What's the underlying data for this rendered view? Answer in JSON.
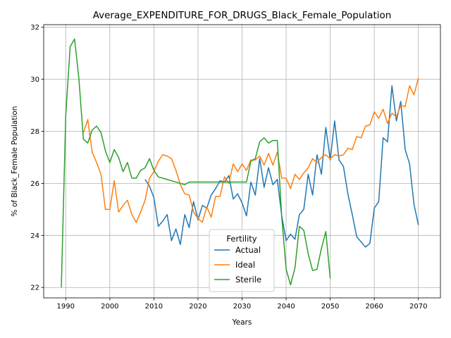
{
  "chart_data": {
    "type": "line",
    "title": "Average_EXPENDITURE_FOR_DRUGS_Black_Female_Population",
    "xlabel": "Years",
    "ylabel": "% of Black_Female Population",
    "xlim": [
      1985,
      2075
    ],
    "ylim": [
      21.6,
      32.1
    ],
    "xticks": [
      1990,
      2000,
      2010,
      2020,
      2030,
      2040,
      2050,
      2060,
      2070
    ],
    "yticks": [
      22,
      24,
      26,
      28,
      30,
      32
    ],
    "grid": true,
    "legend": {
      "title": "Fertility",
      "placement": "lower-center"
    },
    "series": [
      {
        "name": "Actual",
        "color": "#1f77b4",
        "x": [
          2008,
          2009,
          2010,
          2011,
          2012,
          2013,
          2014,
          2015,
          2016,
          2017,
          2018,
          2019,
          2020,
          2021,
          2022,
          2023,
          2024,
          2025,
          2026,
          2027,
          2028,
          2029,
          2030,
          2031,
          2032,
          2033,
          2034,
          2035,
          2036,
          2037,
          2038,
          2039,
          2040,
          2041,
          2042,
          2043,
          2044,
          2045,
          2046,
          2047,
          2048,
          2049,
          2050,
          2051,
          2052,
          2053,
          2054,
          2055,
          2056,
          2057,
          2058,
          2059,
          2060,
          2061,
          2062,
          2063,
          2064,
          2065,
          2066,
          2067,
          2068,
          2069,
          2070
        ],
        "y": [
          26.15,
          25.9,
          25.45,
          24.35,
          24.55,
          24.8,
          23.8,
          24.25,
          23.65,
          24.8,
          24.3,
          25.3,
          24.6,
          25.15,
          25.05,
          25.55,
          25.8,
          26.1,
          26.05,
          26.3,
          25.4,
          25.6,
          25.25,
          24.75,
          26.05,
          25.55,
          26.95,
          25.85,
          26.6,
          25.95,
          26.15,
          24.75,
          23.8,
          24.05,
          23.85,
          24.8,
          25.0,
          26.35,
          25.55,
          27.1,
          26.35,
          28.15,
          26.9,
          28.4,
          26.9,
          26.65,
          25.6,
          24.8,
          23.95,
          23.75,
          23.55,
          23.7,
          25.05,
          25.3,
          27.75,
          27.6,
          29.75,
          28.4,
          29.15,
          27.3,
          26.75,
          25.2,
          24.4
        ]
      },
      {
        "name": "Ideal",
        "color": "#ff7f0e",
        "x": [
          1994,
          1995,
          1996,
          1997,
          1998,
          1999,
          2000,
          2001,
          2002,
          2003,
          2004,
          2005,
          2006,
          2007,
          2008,
          2009,
          2010,
          2011,
          2012,
          2013,
          2014,
          2015,
          2016,
          2017,
          2018,
          2019,
          2020,
          2021,
          2022,
          2023,
          2024,
          2025,
          2026,
          2027,
          2028,
          2029,
          2030,
          2031,
          2032,
          2033,
          2034,
          2035,
          2036,
          2037,
          2038,
          2039,
          2040,
          2041,
          2042,
          2043,
          2044,
          2045,
          2046,
          2047,
          2048,
          2049,
          2050,
          2051,
          2052,
          2053,
          2054,
          2055,
          2056,
          2057,
          2058,
          2059,
          2060,
          2061,
          2062,
          2063,
          2064,
          2065,
          2066,
          2067,
          2068,
          2069,
          2070
        ],
        "y": [
          27.95,
          28.45,
          27.2,
          26.8,
          26.35,
          25.0,
          25.0,
          26.1,
          24.9,
          25.15,
          25.35,
          24.8,
          24.5,
          24.9,
          25.35,
          26.2,
          26.45,
          26.85,
          27.1,
          27.05,
          26.95,
          26.5,
          25.95,
          25.6,
          25.55,
          24.9,
          24.65,
          24.5,
          25.1,
          24.7,
          25.5,
          25.5,
          26.25,
          26.0,
          26.75,
          26.45,
          26.75,
          26.5,
          26.9,
          26.9,
          27.05,
          26.7,
          27.15,
          26.7,
          27.2,
          26.2,
          26.2,
          25.8,
          26.35,
          26.15,
          26.4,
          26.6,
          26.95,
          26.8,
          27.0,
          27.1,
          26.95,
          27.1,
          27.05,
          27.1,
          27.35,
          27.3,
          27.8,
          27.75,
          28.2,
          28.25,
          28.75,
          28.5,
          28.85,
          28.3,
          28.7,
          28.55,
          29.0,
          28.95,
          29.75,
          29.4,
          30.05
        ]
      },
      {
        "name": "Sterile",
        "color": "#2ca02c",
        "x": [
          1989,
          1990,
          1991,
          1992,
          1993,
          1994,
          1995,
          1996,
          1997,
          1998,
          1999,
          2000,
          2001,
          2002,
          2003,
          2004,
          2005,
          2006,
          2007,
          2008,
          2009,
          2010,
          2011,
          2012,
          2013,
          2014,
          2015,
          2016,
          2017,
          2018,
          2019,
          2020,
          2021,
          2022,
          2023,
          2024,
          2025,
          2026,
          2027,
          2028,
          2029,
          2030,
          2031,
          2032,
          2033,
          2034,
          2035,
          2036,
          2037,
          2038,
          2039,
          2040,
          2041,
          2042,
          2043,
          2044,
          2045,
          2046,
          2047,
          2048,
          2049,
          2050
        ],
        "y": [
          22.0,
          28.6,
          31.25,
          31.55,
          30.0,
          27.7,
          27.55,
          28.05,
          28.2,
          27.95,
          27.25,
          26.8,
          27.3,
          27.0,
          26.45,
          26.8,
          26.2,
          26.2,
          26.5,
          26.6,
          26.95,
          26.5,
          26.25,
          26.2,
          26.15,
          26.1,
          26.05,
          26.0,
          25.95,
          26.05,
          26.05,
          26.05,
          26.05,
          26.05,
          26.05,
          26.05,
          26.05,
          26.05,
          26.05,
          26.05,
          26.05,
          26.05,
          26.05,
          26.85,
          26.95,
          27.6,
          27.75,
          27.55,
          27.65,
          27.65,
          24.7,
          22.7,
          22.1,
          22.75,
          24.35,
          24.2,
          23.3,
          22.65,
          22.7,
          23.5,
          24.15,
          22.35
        ]
      }
    ]
  }
}
